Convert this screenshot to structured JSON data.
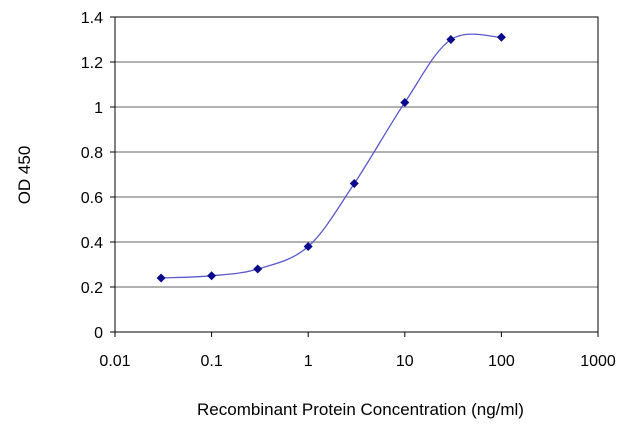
{
  "chart_data": {
    "type": "line",
    "title": "",
    "xlabel": "Recombinant Protein Concentration (ng/ml)",
    "ylabel": "OD 450",
    "x_scale": "log",
    "xlim": [
      0.01,
      1000
    ],
    "ylim": [
      0,
      1.4
    ],
    "x_ticks": [
      "0.01",
      "0.1",
      "1",
      "10",
      "100",
      "1000"
    ],
    "y_ticks": [
      "0",
      "0.2",
      "0.4",
      "0.6",
      "0.8",
      "1",
      "1.2",
      "1.4"
    ],
    "grid": "horizontal",
    "legend": "none",
    "series": [
      {
        "x": [
          0.03,
          0.1,
          0.3,
          1,
          3,
          10,
          30,
          100
        ],
        "y": [
          0.24,
          0.25,
          0.28,
          0.38,
          0.66,
          1.02,
          1.3,
          1.31
        ]
      }
    ],
    "colors": {
      "marker": "#0a0a8c",
      "line": "#5a5acd",
      "grid": "#999999",
      "frame": "#000000"
    }
  }
}
